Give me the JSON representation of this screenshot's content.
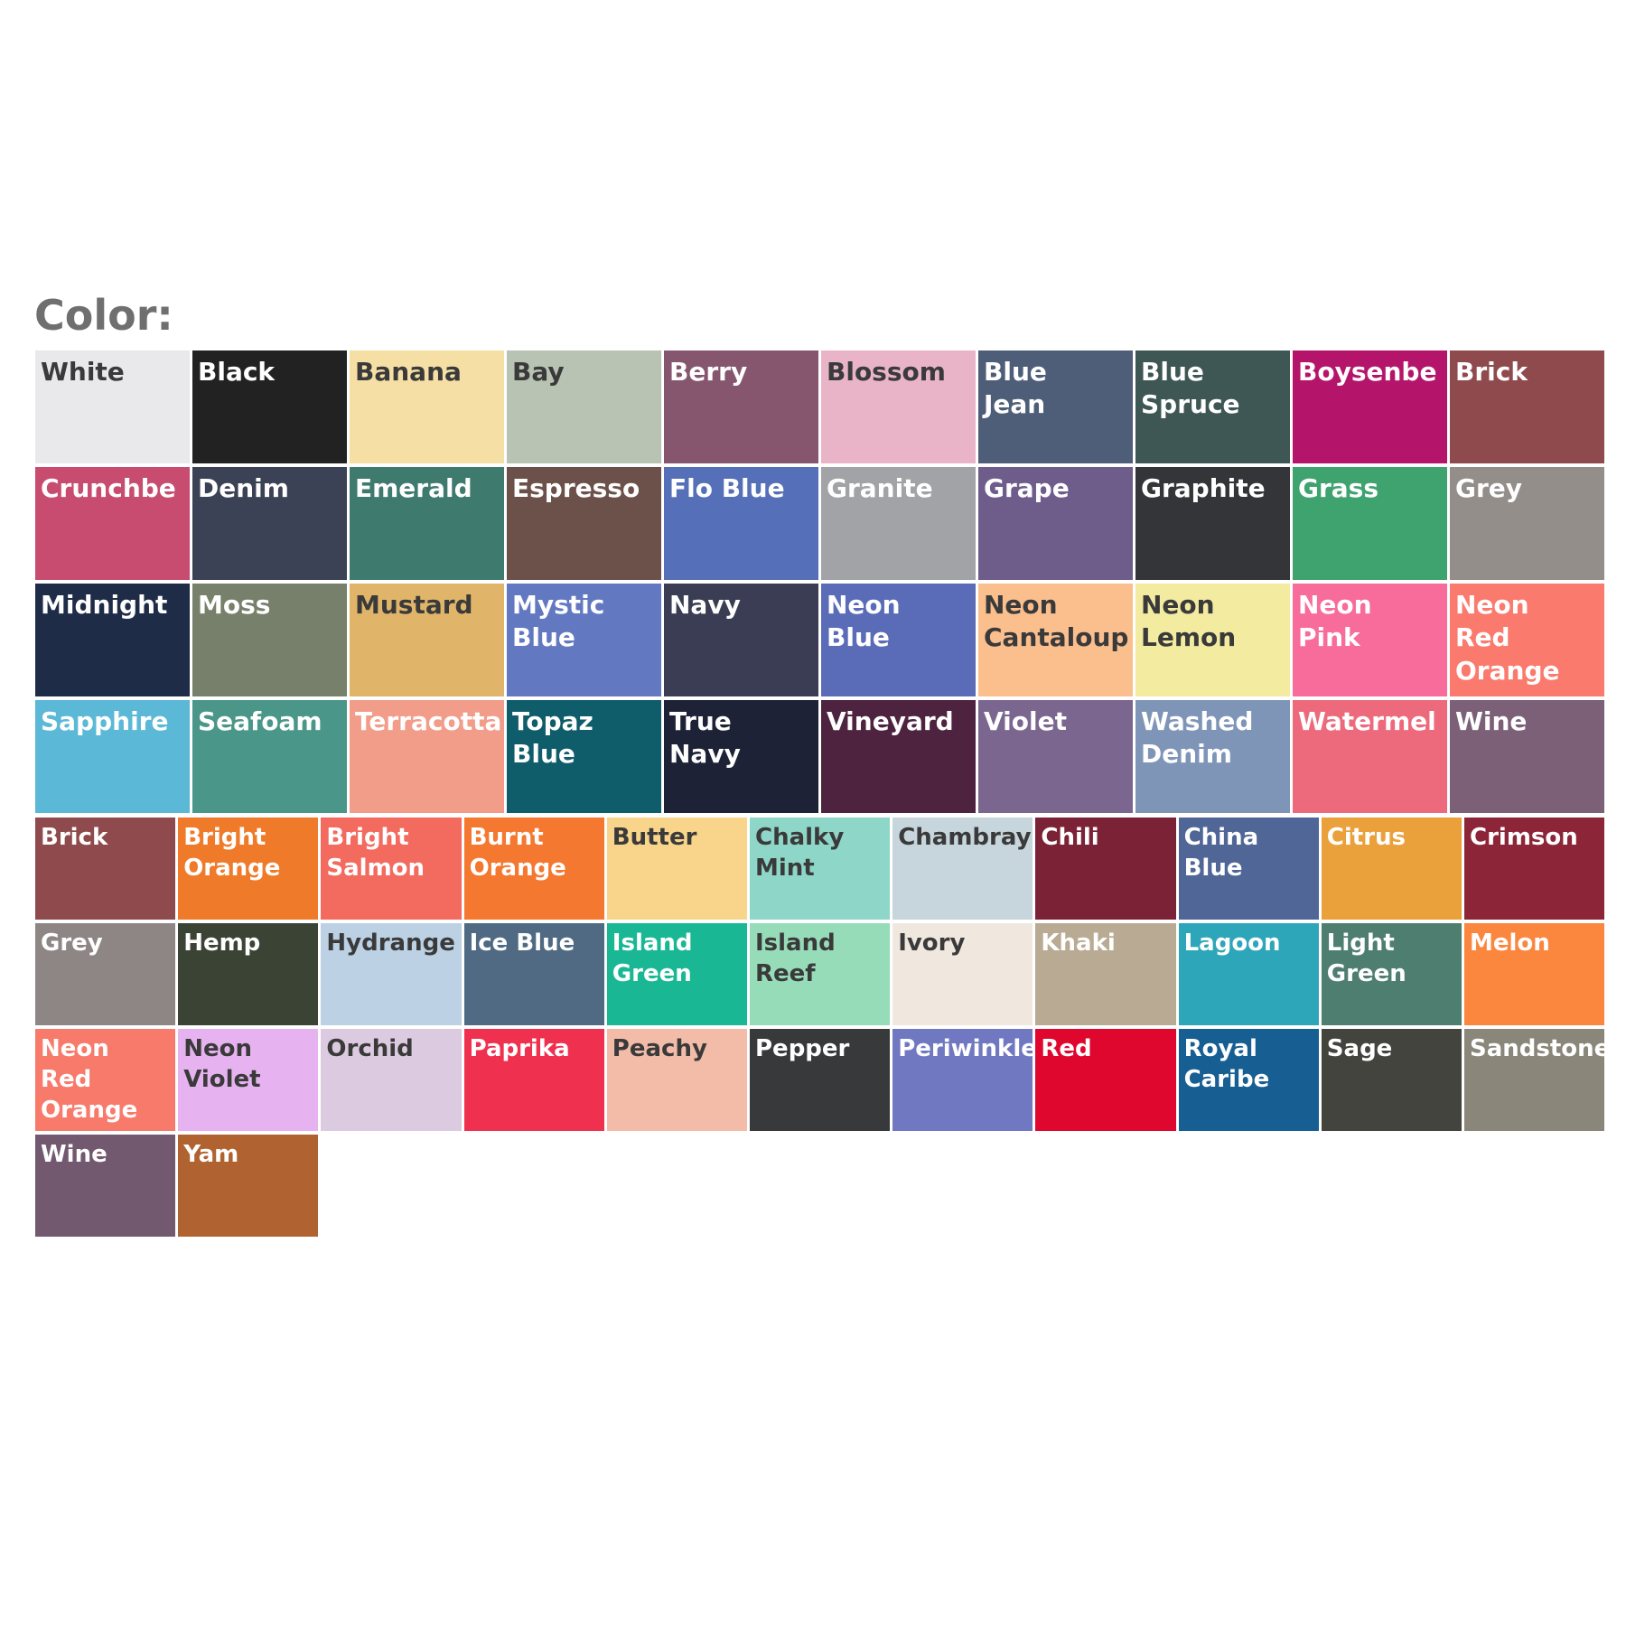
{
  "title": "Color:",
  "groups": [
    {
      "swatches": [
        {
          "label": [
            "White"
          ],
          "color": "#e9e8ea"
        },
        {
          "label": [
            "Black"
          ],
          "color": "#222222"
        },
        {
          "label": [
            "Banana"
          ],
          "color": "#f5dfa5"
        },
        {
          "label": [
            "Bay"
          ],
          "color": "#b9c3b3"
        },
        {
          "label": [
            "Berry"
          ],
          "color": "#86566e"
        },
        {
          "label": [
            "Blossom"
          ],
          "color": "#e9b4c8"
        },
        {
          "label": [
            "Blue",
            "Jean"
          ],
          "color": "#4f5e78"
        },
        {
          "label": [
            "Blue",
            "Spruce"
          ],
          "color": "#3e5754"
        },
        {
          "label": [
            "Boysenbe"
          ],
          "color": "#b4156b"
        },
        {
          "label": [
            "Brick"
          ],
          "color": "#8f4a4d"
        },
        {
          "label": [
            "Crunchbe"
          ],
          "color": "#c84c70"
        },
        {
          "label": [
            "Denim"
          ],
          "color": "#3b4255"
        },
        {
          "label": [
            "Emerald"
          ],
          "color": "#3f7a6f"
        },
        {
          "label": [
            "Espresso"
          ],
          "color": "#6b5149"
        },
        {
          "label": [
            "Flo Blue"
          ],
          "color": "#5570b8"
        },
        {
          "label": [
            "Granite"
          ],
          "color": "#a2a3a6"
        },
        {
          "label": [
            "Grape"
          ],
          "color": "#6e5c8a"
        },
        {
          "label": [
            "Graphite"
          ],
          "color": "#343538"
        },
        {
          "label": [
            "Grass"
          ],
          "color": "#3ea36f"
        },
        {
          "label": [
            "Grey"
          ],
          "color": "#948e8b"
        },
        {
          "label": [
            "Midnight"
          ],
          "color": "#1f2c47"
        },
        {
          "label": [
            "Moss"
          ],
          "color": "#77806b"
        },
        {
          "label": [
            "Mustard"
          ],
          "color": "#e0b56a"
        },
        {
          "label": [
            "Mystic",
            "Blue"
          ],
          "color": "#6279c1"
        },
        {
          "label": [
            "Navy"
          ],
          "color": "#3a3d53"
        },
        {
          "label": [
            "Neon",
            "Blue"
          ],
          "color": "#5a6cb8"
        },
        {
          "label": [
            "Neon",
            "Cantaloup"
          ],
          "color": "#fbbf8e"
        },
        {
          "label": [
            "Neon",
            "Lemon"
          ],
          "color": "#f2eba0"
        },
        {
          "label": [
            "Neon",
            "Pink"
          ],
          "color": "#f76c9a"
        },
        {
          "label": [
            "Neon",
            "Red",
            "Orange"
          ],
          "color": "#fa7a6e"
        },
        {
          "label": [
            "Sapphire"
          ],
          "color": "#5bb8d6"
        },
        {
          "label": [
            "Seafoam"
          ],
          "color": "#4a9688"
        },
        {
          "label": [
            "Terracotta"
          ],
          "color": "#f29c8a"
        },
        {
          "label": [
            "Topaz",
            "Blue"
          ],
          "color": "#0f5c6b"
        },
        {
          "label": [
            "True",
            "Navy"
          ],
          "color": "#1d2236"
        },
        {
          "label": [
            "Vineyard"
          ],
          "color": "#4e2340"
        },
        {
          "label": [
            "Violet"
          ],
          "color": "#7b6690"
        },
        {
          "label": [
            "Washed",
            "Denim"
          ],
          "color": "#7f95b8"
        },
        {
          "label": [
            "Watermel"
          ],
          "color": "#ec6a7b"
        },
        {
          "label": [
            "Wine"
          ],
          "color": "#7b6078"
        }
      ]
    },
    {
      "swatches": [
        {
          "label": [
            "Brick"
          ],
          "color": "#8e4a4c"
        },
        {
          "label": [
            "Bright",
            "Orange"
          ],
          "color": "#ef7b2a"
        },
        {
          "label": [
            "Bright",
            "Salmon"
          ],
          "color": "#f36a5f"
        },
        {
          "label": [
            "Burnt",
            "Orange"
          ],
          "color": "#f4782f"
        },
        {
          "label": [
            "Butter"
          ],
          "color": "#f8d58a"
        },
        {
          "label": [
            "Chalky",
            "Mint"
          ],
          "color": "#8ed6c8"
        },
        {
          "label": [
            "Chambray"
          ],
          "color": "#c7d6dd"
        },
        {
          "label": [
            "Chili"
          ],
          "color": "#7c2236"
        },
        {
          "label": [
            "China",
            "Blue"
          ],
          "color": "#4f6696"
        },
        {
          "label": [
            "Citrus"
          ],
          "color": "#eaa13c"
        },
        {
          "label": [
            "Crimson"
          ],
          "color": "#8d2538"
        },
        {
          "label": [
            "Grey"
          ],
          "color": "#8e8685"
        },
        {
          "label": [
            "Hemp"
          ],
          "color": "#3b4434"
        },
        {
          "label": [
            "Hydrange"
          ],
          "color": "#bcd1e4"
        },
        {
          "label": [
            "Ice Blue"
          ],
          "color": "#4f6a82"
        },
        {
          "label": [
            "Island",
            "Green"
          ],
          "color": "#1ab795"
        },
        {
          "label": [
            "Island",
            "Reef"
          ],
          "color": "#97dcb9"
        },
        {
          "label": [
            "Ivory"
          ],
          "color": "#f0e7df"
        },
        {
          "label": [
            "Khaki"
          ],
          "color": "#b9ab93"
        },
        {
          "label": [
            "Lagoon"
          ],
          "color": "#2ea6b9"
        },
        {
          "label": [
            "Light",
            "Green"
          ],
          "color": "#4e7e6f"
        },
        {
          "label": [
            "Melon"
          ],
          "color": "#fb863e"
        },
        {
          "label": [
            "Neon",
            "Red",
            "Orange"
          ],
          "color": "#f77a6b"
        },
        {
          "label": [
            "Neon",
            "Violet"
          ],
          "color": "#e6b3f0"
        },
        {
          "label": [
            "Orchid"
          ],
          "color": "#dccbe0"
        },
        {
          "label": [
            "Paprika"
          ],
          "color": "#f0304f"
        },
        {
          "label": [
            "Peachy"
          ],
          "color": "#f2bca8"
        },
        {
          "label": [
            "Pepper"
          ],
          "color": "#38393a"
        },
        {
          "label": [
            "Periwinkle"
          ],
          "color": "#7078c1"
        },
        {
          "label": [
            "Red"
          ],
          "color": "#e0072f"
        },
        {
          "label": [
            "Royal",
            "Caribe"
          ],
          "color": "#175f92"
        },
        {
          "label": [
            "Sage"
          ],
          "color": "#43443e"
        },
        {
          "label": [
            "Sandstone"
          ],
          "color": "#8a877a"
        },
        {
          "label": [
            "Wine"
          ],
          "color": "#73596f"
        },
        {
          "label": [
            "Yam"
          ],
          "color": "#b06330"
        }
      ]
    }
  ]
}
